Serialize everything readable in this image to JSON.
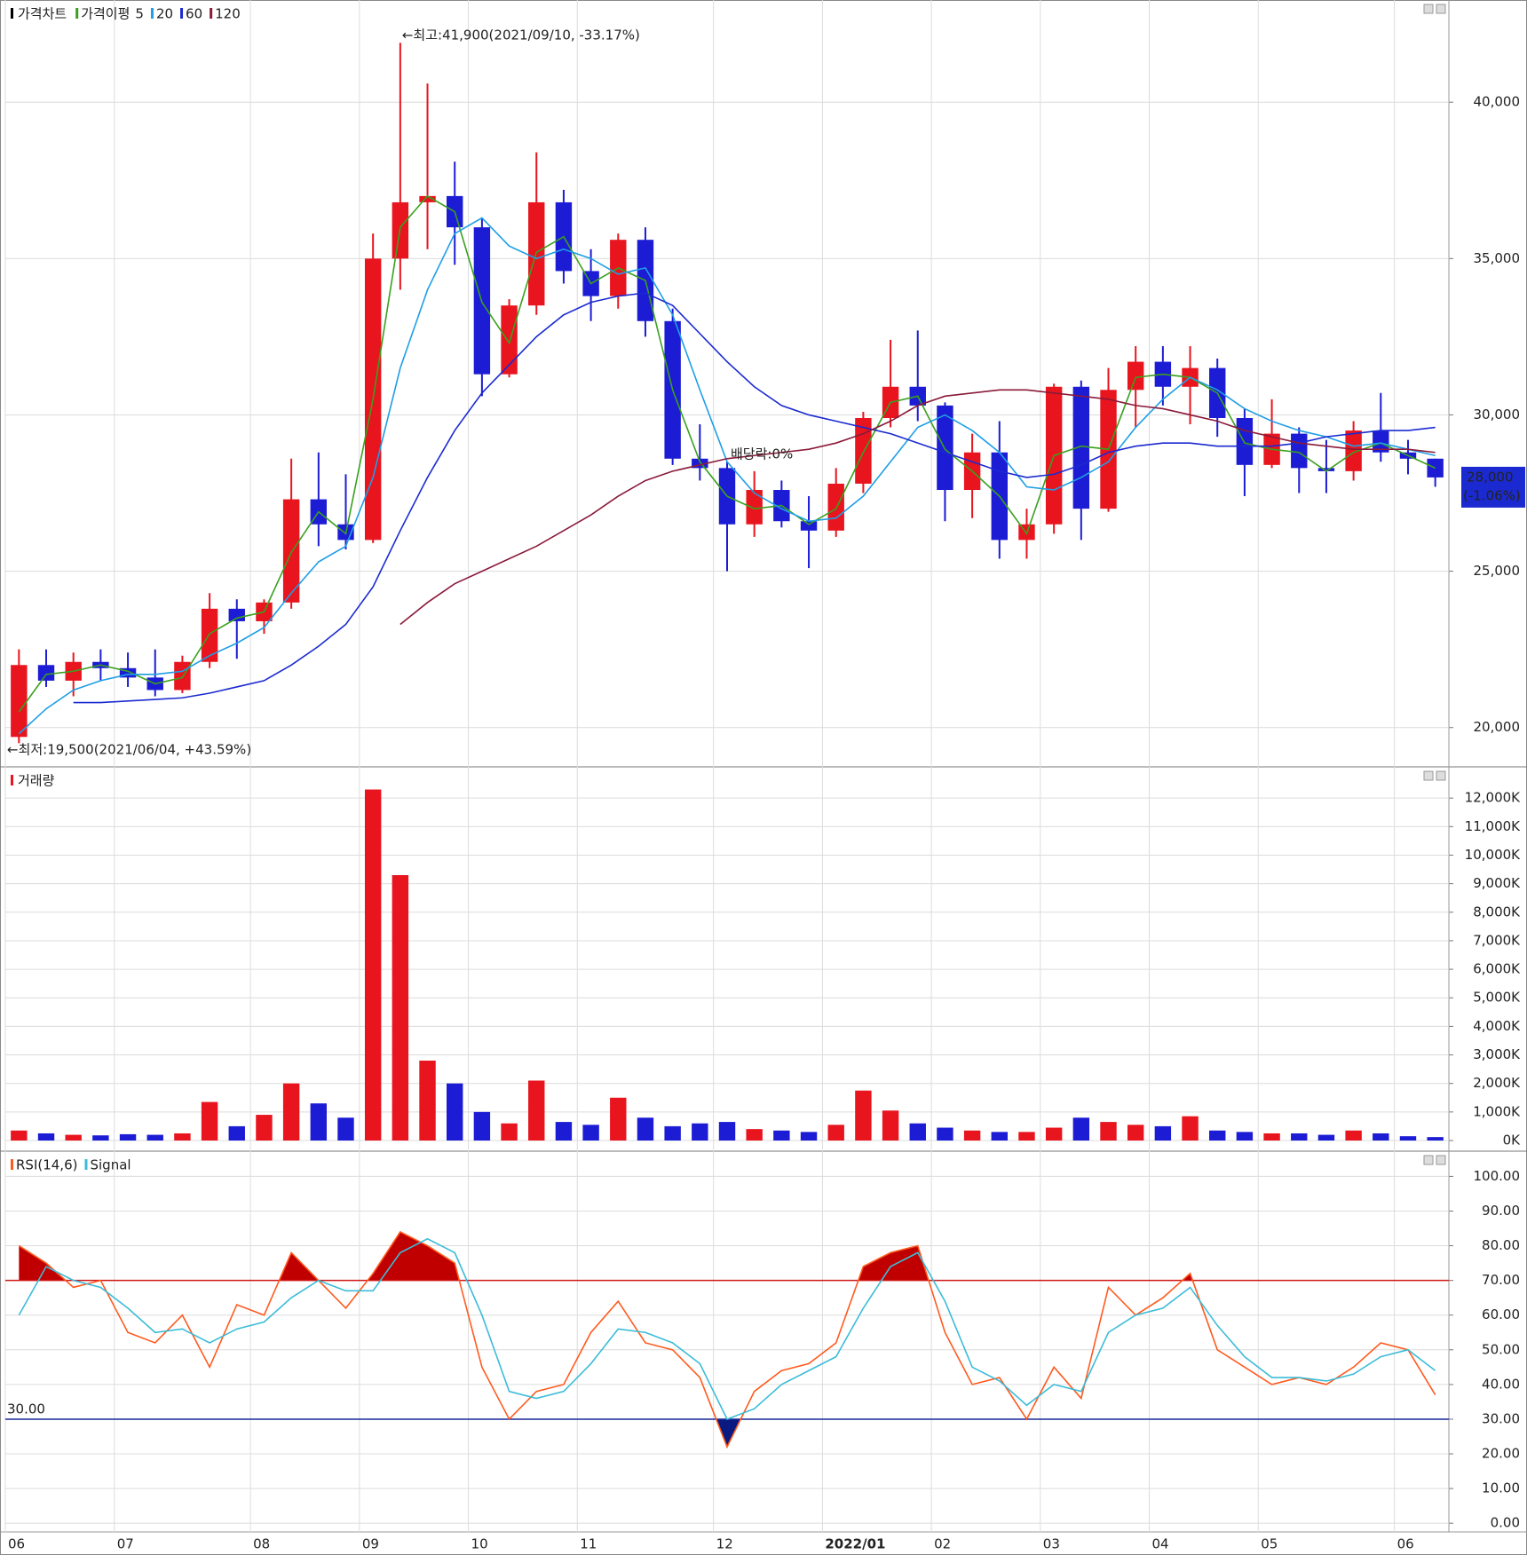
{
  "chart_data": [
    {
      "type": "candlestick",
      "title": "가격차트",
      "ma_title": "가격이평",
      "categories": [
        "06",
        null,
        null,
        null,
        "07",
        null,
        null,
        null,
        null,
        "08",
        null,
        null,
        null,
        "09",
        null,
        null,
        null,
        "10",
        null,
        null,
        null,
        "11",
        null,
        null,
        null,
        null,
        "12",
        null,
        null,
        null,
        "2022/01",
        null,
        null,
        null,
        "02",
        null,
        null,
        null,
        "03",
        null,
        null,
        null,
        "04",
        null,
        null,
        null,
        "05",
        null,
        null,
        null,
        null,
        "06",
        null
      ],
      "open": [
        19700,
        22000,
        21500,
        22100,
        21900,
        21600,
        21200,
        22100,
        23800,
        23400,
        24000,
        27300,
        26500,
        26000,
        35000,
        36800,
        37000,
        36000,
        31300,
        33500,
        36800,
        34600,
        33800,
        35600,
        33000,
        28600,
        28300,
        26500,
        27600,
        26600,
        26300,
        27800,
        29900,
        30900,
        30300,
        27600,
        28800,
        26000,
        26500,
        30900,
        27000,
        30800,
        31700,
        30900,
        31500,
        29900,
        28400,
        29400,
        28300,
        28200,
        29500,
        28800,
        28600
      ],
      "high": [
        22500,
        22500,
        22400,
        22500,
        22400,
        22500,
        22300,
        24300,
        24100,
        24100,
        28600,
        28800,
        28100,
        35800,
        41900,
        40600,
        38100,
        36300,
        33700,
        38400,
        37200,
        35300,
        35800,
        36000,
        33400,
        29700,
        28500,
        28200,
        27900,
        27400,
        28300,
        30100,
        32400,
        32700,
        30400,
        29400,
        29800,
        27000,
        31000,
        31100,
        31500,
        32200,
        32200,
        32200,
        31800,
        30200,
        30500,
        29600,
        29200,
        29800,
        30700,
        29200,
        28600
      ],
      "low": [
        19500,
        21300,
        21000,
        21500,
        21300,
        21000,
        21100,
        21900,
        22200,
        23000,
        23800,
        25800,
        25700,
        25900,
        34000,
        35300,
        34800,
        30600,
        31200,
        33200,
        34200,
        33000,
        33400,
        32500,
        28400,
        27900,
        25000,
        26100,
        26400,
        25100,
        26100,
        27500,
        29600,
        29800,
        26600,
        26700,
        25400,
        25400,
        26200,
        26000,
        26900,
        29600,
        30300,
        29700,
        29300,
        27400,
        28300,
        27500,
        27500,
        27900,
        28500,
        28100,
        27700
      ],
      "close": [
        22000,
        21500,
        22100,
        21900,
        21600,
        21200,
        22100,
        23800,
        23400,
        24000,
        27300,
        26500,
        26000,
        35000,
        36800,
        37000,
        36000,
        31300,
        33500,
        36800,
        34600,
        33800,
        35600,
        33000,
        28600,
        28300,
        26500,
        27600,
        26600,
        26300,
        27800,
        29900,
        30900,
        30300,
        27600,
        28800,
        26000,
        26500,
        30900,
        27000,
        30800,
        31700,
        30900,
        31500,
        29900,
        28400,
        29400,
        28300,
        28200,
        29500,
        28800,
        28600,
        28000
      ],
      "up_color": "#e8141e",
      "down_color": "#1c1cd4",
      "series": [
        {
          "name": "5",
          "color": "#3aa01e",
          "values": [
            20500,
            21700,
            21800,
            22000,
            21800,
            21400,
            21600,
            23000,
            23500,
            23700,
            25600,
            26900,
            26200,
            30500,
            36000,
            37000,
            36500,
            33600,
            32300,
            35200,
            35700,
            34200,
            34700,
            34300,
            30800,
            28500,
            27400,
            27000,
            27100,
            26500,
            27000,
            28800,
            30400,
            30600,
            28900,
            28200,
            27400,
            26200,
            28700,
            29000,
            28900,
            31200,
            31300,
            31200,
            30700,
            29100,
            28900,
            28800,
            28200,
            28800,
            29100,
            28700,
            28300
          ]
        },
        {
          "name": "20",
          "color": "#1e9ee6",
          "values": [
            19800,
            20600,
            21200,
            21500,
            21700,
            21700,
            21800,
            22300,
            22700,
            23200,
            24300,
            25300,
            25800,
            28000,
            31500,
            34000,
            35800,
            36300,
            35400,
            35000,
            35300,
            35000,
            34500,
            34700,
            33200,
            30800,
            28500,
            27500,
            27000,
            26600,
            26700,
            27400,
            28500,
            29600,
            30000,
            29500,
            28800,
            27700,
            27600,
            28000,
            28500,
            29600,
            30500,
            31200,
            30800,
            30200,
            29800,
            29500,
            29300,
            29000,
            29100,
            28900,
            28700
          ]
        },
        {
          "name": "60",
          "color": "#1a2ad0",
          "values": [
            null,
            null,
            20800,
            20800,
            20850,
            20900,
            20950,
            21100,
            21300,
            21500,
            22000,
            22600,
            23300,
            24500,
            26300,
            28000,
            29500,
            30700,
            31600,
            32500,
            33200,
            33600,
            33800,
            33900,
            33500,
            32600,
            31700,
            30900,
            30300,
            30000,
            29800,
            29600,
            29400,
            29100,
            28800,
            28500,
            28200,
            28000,
            28100,
            28400,
            28800,
            29000,
            29100,
            29100,
            29000,
            29000,
            29000,
            29100,
            29300,
            29400,
            29500,
            29500,
            29600
          ]
        },
        {
          "name": "120",
          "color": "#8a1a3a",
          "values": [
            null,
            null,
            null,
            null,
            null,
            null,
            null,
            null,
            null,
            null,
            null,
            null,
            null,
            null,
            23300,
            24000,
            24600,
            25000,
            25400,
            25800,
            26300,
            26800,
            27400,
            27900,
            28200,
            28400,
            28600,
            28700,
            28800,
            28900,
            29100,
            29400,
            29800,
            30300,
            30600,
            30700,
            30800,
            30800,
            30700,
            30600,
            30500,
            30300,
            30200,
            30000,
            29800,
            29500,
            29300,
            29100,
            29000,
            28900,
            28900,
            28900,
            28800
          ]
        }
      ],
      "ylim": [
        18800,
        43100
      ],
      "yticks": [
        {
          "value": 20000,
          "label": "20,000"
        },
        {
          "value": 25000,
          "label": "25,000"
        },
        {
          "value": 30000,
          "label": "30,000"
        },
        {
          "value": 35000,
          "label": "35,000"
        },
        {
          "value": 40000,
          "label": "40,000"
        }
      ],
      "annotations": {
        "high": "←최고:41,900(2021/09/10, -33.17%)",
        "low": "←최저:19,500(2021/06/04, +43.59%)",
        "dividend": "배당락:0%"
      },
      "last_price": {
        "value": 28000,
        "label": "28,000"
      },
      "last_change": "(-1.06%)",
      "grid": true
    },
    {
      "type": "bar",
      "title": "거래량",
      "values": [
        350,
        250,
        200,
        180,
        220,
        200,
        250,
        1350,
        500,
        900,
        2000,
        1300,
        800,
        12300,
        9300,
        2800,
        2000,
        1000,
        600,
        2100,
        650,
        550,
        1500,
        800,
        500,
        600,
        650,
        400,
        350,
        300,
        550,
        1750,
        1050,
        600,
        450,
        350,
        300,
        300,
        450,
        800,
        650,
        550,
        500,
        850,
        350,
        300,
        250,
        250,
        200,
        350,
        250,
        150,
        120
      ],
      "ylim": [
        -280,
        12970
      ],
      "yticks": [
        {
          "value": 0,
          "label": "0K"
        },
        {
          "value": 1000,
          "label": "1,000K"
        },
        {
          "value": 2000,
          "label": "2,000K"
        },
        {
          "value": 3000,
          "label": "3,000K"
        },
        {
          "value": 4000,
          "label": "4,000K"
        },
        {
          "value": 5000,
          "label": "5,000K"
        },
        {
          "value": 6000,
          "label": "6,000K"
        },
        {
          "value": 7000,
          "label": "7,000K"
        },
        {
          "value": 8000,
          "label": "8,000K"
        },
        {
          "value": 9000,
          "label": "9,000K"
        },
        {
          "value": 10000,
          "label": "10,000K"
        },
        {
          "value": 11000,
          "label": "11,000K"
        },
        {
          "value": 12000,
          "label": "12,000K"
        }
      ],
      "grid": true
    },
    {
      "type": "line",
      "series": [
        {
          "name": "RSI(14,6)",
          "color": "#ff5a1e",
          "values": [
            80,
            75,
            68,
            70,
            55,
            52,
            60,
            45,
            63,
            60,
            78,
            70,
            62,
            72,
            84,
            80,
            75,
            45,
            30,
            38,
            40,
            55,
            64,
            52,
            50,
            42,
            22,
            38,
            44,
            46,
            52,
            74,
            78,
            80,
            55,
            40,
            42,
            30,
            45,
            36,
            68,
            60,
            65,
            72,
            50,
            45,
            40,
            42,
            40,
            45,
            52,
            50,
            37
          ]
        },
        {
          "name": "Signal",
          "color": "#3cbcd8",
          "values": [
            60,
            74,
            70,
            68,
            62,
            55,
            56,
            52,
            56,
            58,
            65,
            70,
            67,
            67,
            78,
            82,
            78,
            60,
            38,
            36,
            38,
            46,
            56,
            55,
            52,
            46,
            30,
            33,
            40,
            44,
            48,
            62,
            74,
            78,
            64,
            45,
            41,
            34,
            40,
            38,
            55,
            60,
            62,
            68,
            57,
            48,
            42,
            42,
            41,
            43,
            48,
            50,
            44
          ]
        }
      ],
      "ylim": [
        -2,
        106.5
      ],
      "yticks": [
        {
          "value": 0,
          "label": "0.00"
        },
        {
          "value": 10,
          "label": "10.00"
        },
        {
          "value": 20,
          "label": "20.00"
        },
        {
          "value": 30,
          "label": "30.00"
        },
        {
          "value": 40,
          "label": "40.00"
        },
        {
          "value": 50,
          "label": "50.00"
        },
        {
          "value": 60,
          "label": "60.00"
        },
        {
          "value": 70,
          "label": "70.00"
        },
        {
          "value": 80,
          "label": "80.00"
        },
        {
          "value": 90,
          "label": "90.00"
        },
        {
          "value": 100,
          "label": "100.00"
        }
      ],
      "ref_lines": [
        {
          "value": 70,
          "color": "#d01818",
          "fill": "#c00000"
        },
        {
          "value": 30,
          "color": "#1a2a9a",
          "fill": "#0a1a80",
          "label": "30.00"
        }
      ],
      "grid": true
    }
  ]
}
